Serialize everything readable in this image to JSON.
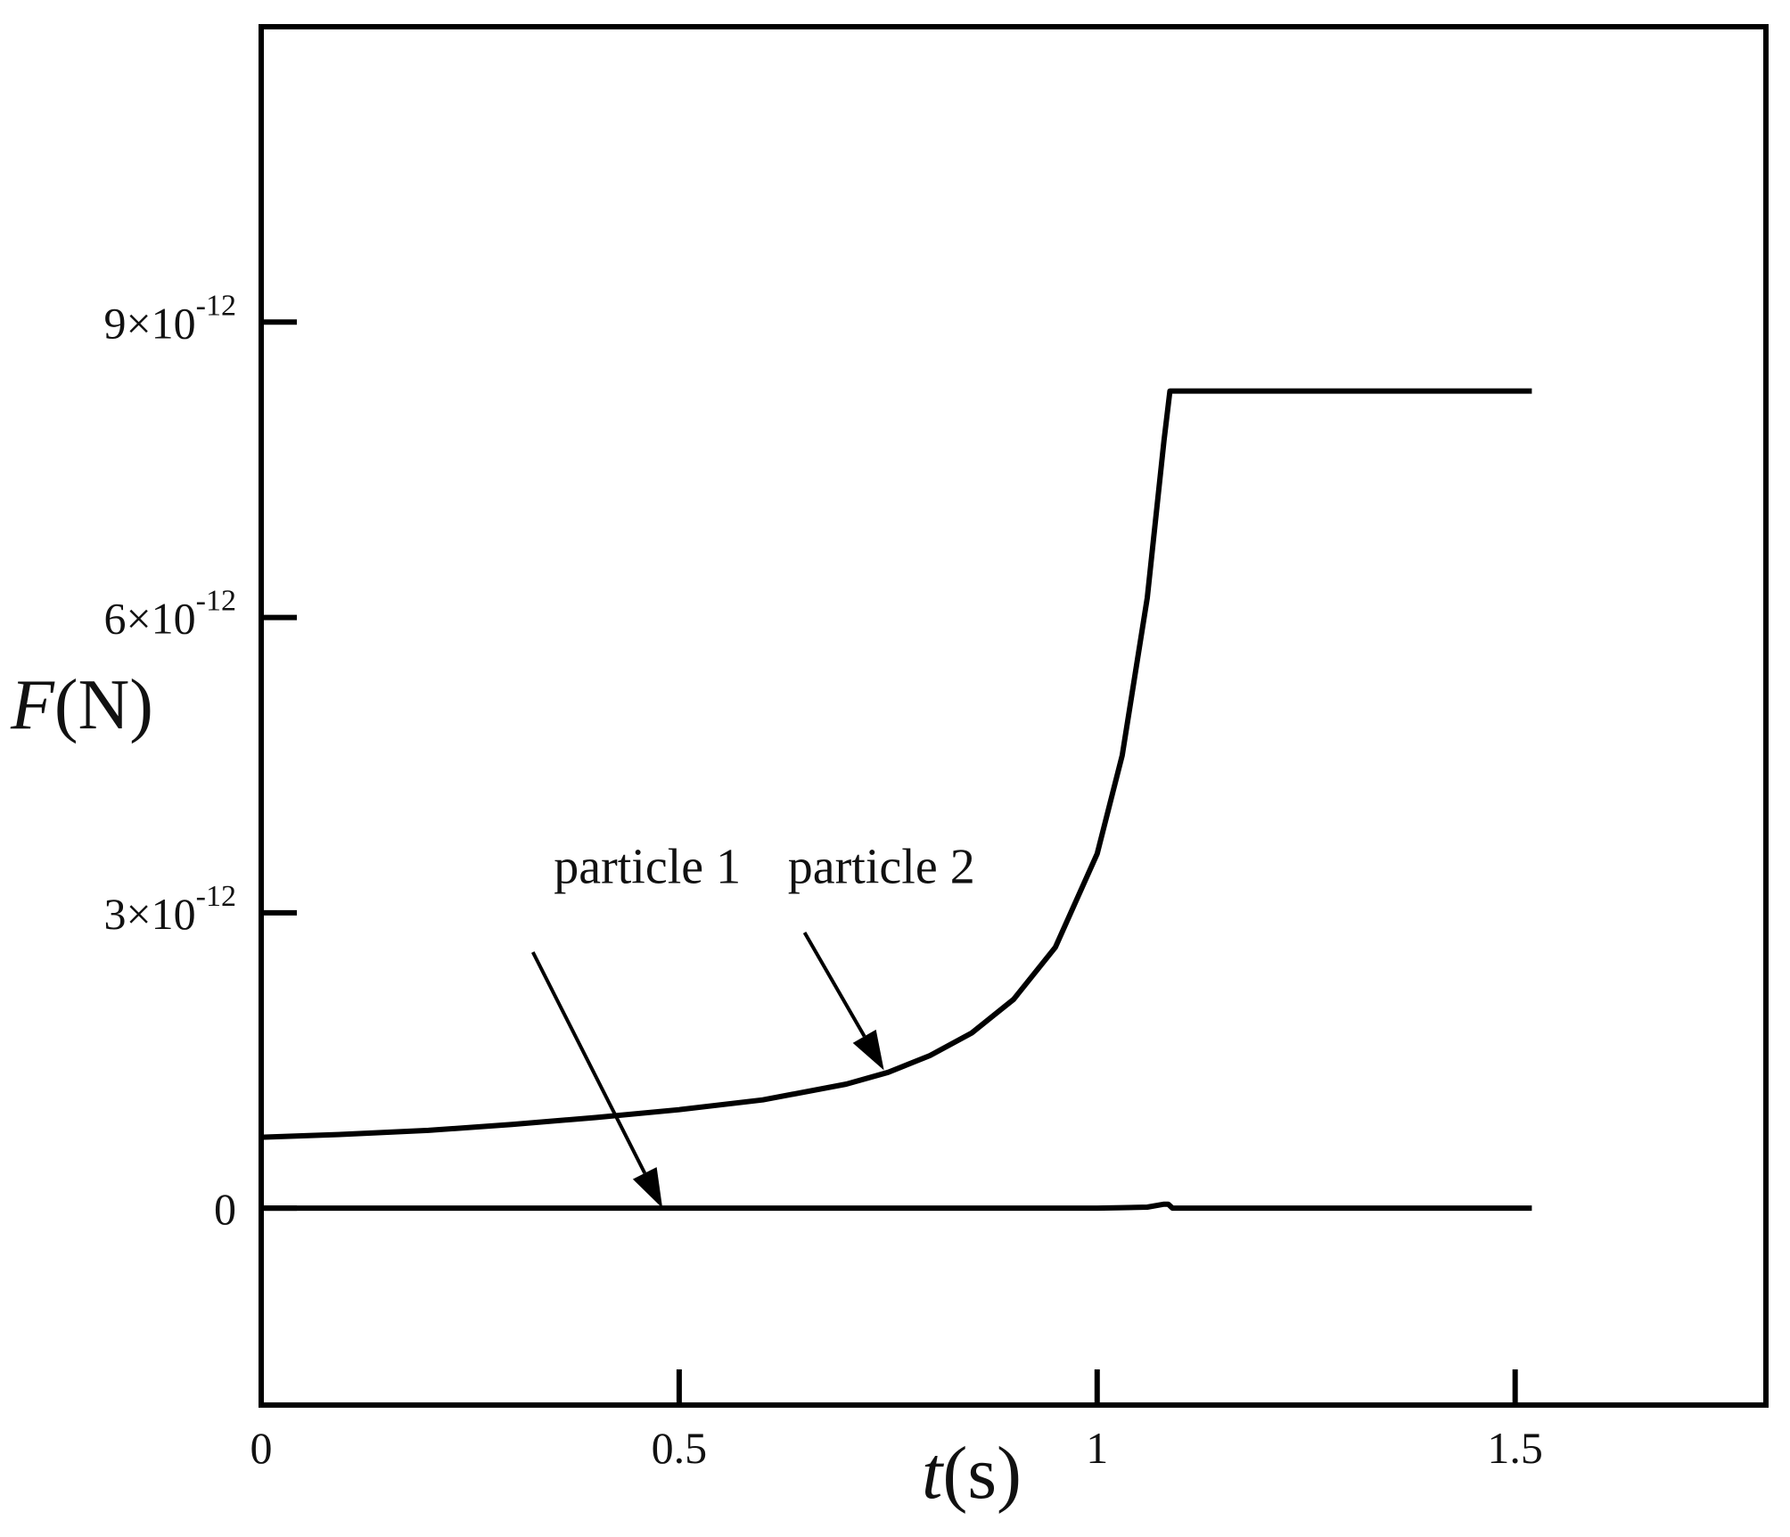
{
  "chart_data": {
    "type": "line",
    "xlabel": {
      "var": "t",
      "unit": "(s)"
    },
    "ylabel": {
      "var": "F",
      "unit": "(N)"
    },
    "xlim": [
      0,
      1.8
    ],
    "ylim": [
      -2e-12,
      1.2e-11
    ],
    "x_ticks": [
      {
        "value": 0,
        "label": "0"
      },
      {
        "value": 0.5,
        "label": "0.5"
      },
      {
        "value": 1,
        "label": "1"
      },
      {
        "value": 1.5,
        "label": "1.5"
      }
    ],
    "y_ticks": [
      {
        "value": 0,
        "label": "0"
      },
      {
        "value": 3e-12,
        "mant": "3",
        "times": "×10",
        "exp": "-12"
      },
      {
        "value": 6e-12,
        "mant": "6",
        "times": "×10",
        "exp": "-12"
      },
      {
        "value": 9e-12,
        "mant": "9",
        "times": "×10",
        "exp": "-12"
      }
    ],
    "grid": false,
    "series": [
      {
        "name": "particle 1",
        "x": [
          0,
          0.2,
          0.4,
          0.6,
          0.8,
          1.0,
          1.03,
          1.06,
          1.08,
          1.085,
          1.09,
          1.2,
          1.35,
          1.52
        ],
        "y": [
          0,
          0,
          0,
          0,
          0,
          0,
          5e-15,
          1e-14,
          4e-14,
          4e-14,
          0,
          0,
          0,
          0
        ]
      },
      {
        "name": "particle 2",
        "x": [
          0,
          0.1,
          0.2,
          0.3,
          0.4,
          0.5,
          0.6,
          0.7,
          0.75,
          0.8,
          0.85,
          0.9,
          0.95,
          1.0,
          1.03,
          1.06,
          1.08,
          1.087,
          1.2,
          1.35,
          1.52
        ],
        "y": [
          7.2e-13,
          7.5e-13,
          7.9e-13,
          8.5e-13,
          9.2e-13,
          1e-12,
          1.1e-12,
          1.26e-12,
          1.38e-12,
          1.55e-12,
          1.78e-12,
          2.12e-12,
          2.65e-12,
          3.6e-12,
          4.6e-12,
          6.2e-12,
          7.8e-12,
          8.3e-12,
          8.3e-12,
          8.3e-12,
          8.3e-12
        ]
      }
    ],
    "annotations": [
      {
        "text": "particle 1",
        "series": "particle 1",
        "text_x": 0.35,
        "text_y": 3.3e-12,
        "tail_x": 0.325,
        "tail_y": 2.6e-12,
        "head_x": 0.48,
        "head_y": 0.0
      },
      {
        "text": "particle 2",
        "series": "particle 2",
        "text_x": 0.63,
        "text_y": 3.3e-12,
        "tail_x": 0.65,
        "tail_y": 2.8e-12,
        "head_x": 0.745,
        "head_y": 1.4e-12
      }
    ]
  }
}
